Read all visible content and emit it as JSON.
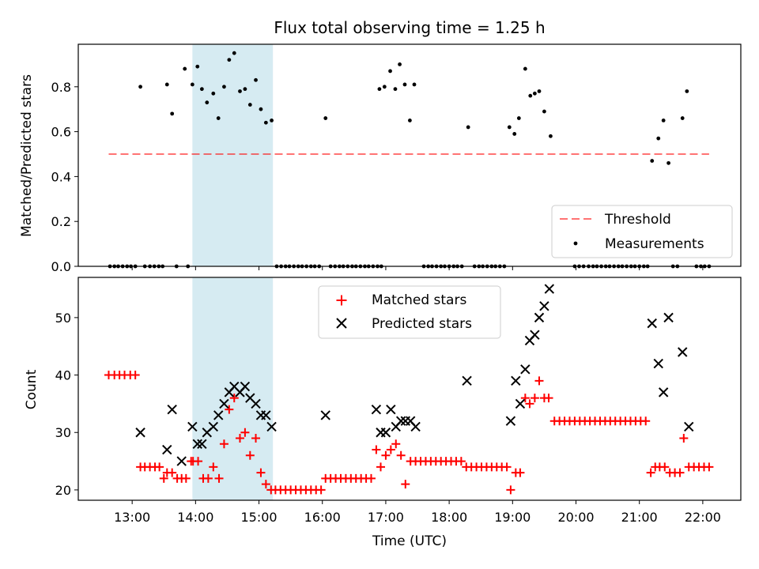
{
  "chart_data": {
    "title": "Flux total observing time = 1.25 h",
    "xlabel": "Time (UTC)",
    "x_ticks": [
      "13:00",
      "14:00",
      "15:00",
      "16:00",
      "17:00",
      "18:00",
      "19:00",
      "20:00",
      "21:00",
      "22:00"
    ],
    "x_tick_hours": [
      13,
      14,
      15,
      16,
      17,
      18,
      19,
      20,
      21,
      22
    ],
    "xlim_hours": [
      12.15,
      22.6
    ],
    "highlight_span_hours": [
      13.95,
      15.22
    ],
    "colors": {
      "highlight": "#add8e6",
      "threshold": "#ff0000",
      "matched": "#ff0000",
      "predicted": "#000000",
      "measurements": "#000000"
    },
    "charts": [
      {
        "type": "scatter",
        "ylabel": "Matched/Predicted stars",
        "ylim": [
          0,
          1.0
        ],
        "y_ticks": [
          0.0,
          0.2,
          0.4,
          0.6,
          0.8
        ],
        "y_tick_labels": [
          "0.0",
          "0.2",
          "0.4",
          "0.6",
          "0.8"
        ],
        "legend": {
          "position": "lower-right",
          "threshold_label": "Threshold",
          "measurements_label": "Measurements"
        },
        "threshold": {
          "name": "Threshold",
          "value": 0.5,
          "x_range": [
            12.63,
            22.1
          ]
        },
        "measurements": {
          "name": "Measurements",
          "x": [
            13.13,
            13.55,
            13.63,
            13.83,
            13.95,
            14.03,
            14.1,
            14.18,
            14.28,
            14.36,
            14.45,
            14.53,
            14.61,
            14.7,
            14.78,
            14.86,
            14.95,
            15.03,
            15.11,
            15.2,
            16.05,
            16.9,
            16.98,
            17.07,
            17.15,
            17.22,
            17.3,
            17.38,
            17.45,
            18.3,
            18.95,
            19.03,
            19.1,
            19.2,
            19.28,
            19.35,
            19.42,
            19.5,
            19.6,
            21.2,
            21.3,
            21.38,
            21.46,
            21.68,
            21.75
          ],
          "y": [
            0.8,
            0.81,
            0.68,
            0.88,
            0.81,
            0.89,
            0.79,
            0.73,
            0.77,
            0.66,
            0.8,
            0.92,
            0.95,
            0.78,
            0.79,
            0.72,
            0.83,
            0.7,
            0.64,
            0.65,
            0.66,
            0.79,
            0.8,
            0.87,
            0.79,
            0.9,
            0.81,
            0.65,
            0.81,
            0.62,
            0.62,
            0.59,
            0.66,
            0.88,
            0.76,
            0.77,
            0.78,
            0.69,
            0.58,
            0.47,
            0.57,
            0.65,
            0.46,
            0.66,
            0.78
          ]
        },
        "zero_measurements_x": [
          12.65,
          12.72,
          12.78,
          12.85,
          12.92,
          12.98,
          13.05,
          13.2,
          13.28,
          13.35,
          13.42,
          13.48,
          13.7,
          13.88,
          15.28,
          15.35,
          15.42,
          15.48,
          15.55,
          15.62,
          15.68,
          15.75,
          15.82,
          15.88,
          15.95,
          16.13,
          16.2,
          16.27,
          16.33,
          16.4,
          16.47,
          16.53,
          16.6,
          16.67,
          16.73,
          16.8,
          16.87,
          16.93,
          17.6,
          17.67,
          17.73,
          17.8,
          17.87,
          17.93,
          18.0,
          18.07,
          18.13,
          18.2,
          18.4,
          18.47,
          18.53,
          18.6,
          18.67,
          18.73,
          18.8,
          18.87,
          19.98,
          20.05,
          20.12,
          20.2,
          20.27,
          20.33,
          20.4,
          20.47,
          20.53,
          20.6,
          20.67,
          20.73,
          20.8,
          20.87,
          20.93,
          21.0,
          21.07,
          21.13,
          21.53,
          21.6,
          21.9,
          21.97,
          22.03,
          22.1
        ]
      },
      {
        "type": "scatter",
        "ylabel": "Count",
        "ylim": [
          18.2,
          57
        ],
        "y_ticks": [
          20,
          30,
          40,
          50
        ],
        "y_tick_labels": [
          "20",
          "30",
          "40",
          "50"
        ],
        "legend": {
          "position": "top-center",
          "matched_label": "Matched stars",
          "predicted_label": "Predicted stars"
        },
        "series": [
          {
            "name": "Matched stars",
            "marker": "+",
            "x": [
              12.63,
              12.72,
              12.8,
              12.88,
              12.97,
              13.05,
              13.13,
              13.2,
              13.28,
              13.36,
              13.43,
              13.5,
              13.55,
              13.63,
              13.71,
              13.78,
              13.85,
              13.93,
              13.96,
              14.04,
              14.12,
              14.2,
              14.28,
              14.37,
              14.45,
              14.53,
              14.61,
              14.7,
              14.78,
              14.86,
              14.95,
              15.03,
              15.11,
              15.19,
              15.26,
              15.34,
              15.42,
              15.5,
              15.58,
              15.66,
              15.74,
              15.82,
              15.9,
              15.98,
              16.05,
              16.13,
              16.21,
              16.29,
              16.37,
              16.45,
              16.53,
              16.61,
              16.69,
              16.77,
              16.85,
              16.92,
              17.0,
              17.08,
              17.16,
              17.24,
              17.31,
              17.39,
              17.47,
              17.55,
              17.63,
              17.71,
              17.79,
              17.87,
              17.95,
              18.03,
              18.11,
              18.19,
              18.27,
              18.35,
              18.43,
              18.51,
              18.59,
              18.67,
              18.75,
              18.83,
              18.91,
              18.97,
              19.05,
              19.12,
              19.2,
              19.27,
              19.35,
              19.42,
              19.5,
              19.57,
              19.66,
              19.74,
              19.82,
              19.9,
              19.98,
              20.06,
              20.14,
              20.22,
              20.3,
              20.38,
              20.46,
              20.54,
              20.62,
              20.7,
              20.78,
              20.86,
              20.94,
              21.02,
              21.1,
              21.18,
              21.25,
              21.32,
              21.4,
              21.48,
              21.56,
              21.64,
              21.7,
              21.78,
              21.86,
              21.94,
              22.02,
              22.1
            ],
            "y": [
              40,
              40,
              40,
              40,
              40,
              40,
              24,
              24,
              24,
              24,
              24,
              22,
              23,
              23,
              22,
              22,
              22,
              25,
              25,
              25,
              22,
              22,
              24,
              22,
              28,
              34,
              36,
              29,
              30,
              26,
              29,
              23,
              21,
              20,
              20,
              20,
              20,
              20,
              20,
              20,
              20,
              20,
              20,
              20,
              22,
              22,
              22,
              22,
              22,
              22,
              22,
              22,
              22,
              22,
              27,
              24,
              26,
              27,
              28,
              26,
              21,
              25,
              25,
              25,
              25,
              25,
              25,
              25,
              25,
              25,
              25,
              25,
              24,
              24,
              24,
              24,
              24,
              24,
              24,
              24,
              24,
              20,
              23,
              23,
              36,
              35,
              36,
              39,
              36,
              36,
              32,
              32,
              32,
              32,
              32,
              32,
              32,
              32,
              32,
              32,
              32,
              32,
              32,
              32,
              32,
              32,
              32,
              32,
              32,
              23,
              24,
              24,
              24,
              23,
              23,
              23,
              29,
              24,
              24,
              24,
              24,
              24
            ]
          },
          {
            "name": "Predicted stars",
            "marker": "x",
            "x": [
              13.13,
              13.55,
              13.63,
              13.78,
              13.95,
              14.03,
              14.1,
              14.18,
              14.28,
              14.36,
              14.45,
              14.53,
              14.61,
              14.7,
              14.78,
              14.86,
              14.95,
              15.03,
              15.11,
              15.2,
              16.05,
              16.85,
              16.92,
              17.0,
              17.08,
              17.16,
              17.24,
              17.31,
              17.39,
              17.47,
              18.28,
              18.97,
              19.05,
              19.12,
              19.2,
              19.27,
              19.35,
              19.42,
              19.5,
              19.58,
              21.2,
              21.3,
              21.38,
              21.46,
              21.68,
              21.78
            ],
            "y": [
              30,
              27,
              34,
              25,
              31,
              28,
              28,
              30,
              31,
              33,
              35,
              37,
              38,
              37,
              38,
              36,
              35,
              33,
              33,
              31,
              33,
              34,
              30,
              30,
              34,
              31,
              32,
              32,
              32,
              31,
              39,
              32,
              39,
              35,
              41,
              46,
              47,
              50,
              52,
              55,
              49,
              42,
              37,
              50,
              44,
              31
            ]
          }
        ]
      }
    ]
  }
}
